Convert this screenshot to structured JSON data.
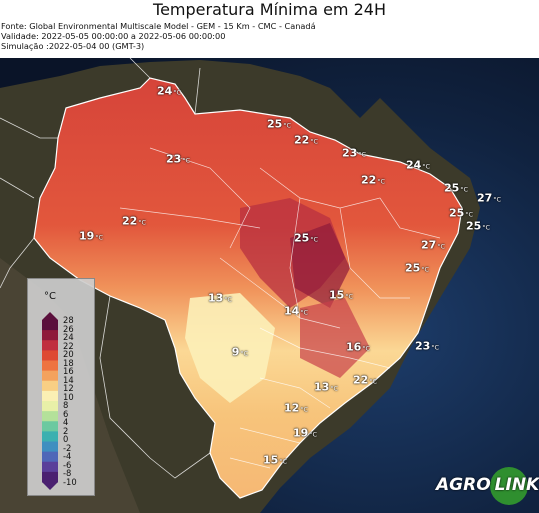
{
  "header": {
    "title": "Temperatura Mínima em 24H",
    "source": "Fonte: Global Environmental Multiscale Model - GEM - 15 Km - CMC - Canadá",
    "validity": "Validade: 2022-05-05 00:00:00 a 2022-05-06 00:00:00",
    "simulation": "Simulação :2022-05-04 00 (GMT-3)"
  },
  "map": {
    "labels": [
      {
        "id": "24a",
        "value": "24",
        "unit": "°C"
      },
      {
        "id": "25a",
        "value": "25",
        "unit": "°C"
      },
      {
        "id": "22a",
        "value": "22",
        "unit": "°C"
      },
      {
        "id": "23a",
        "value": "23",
        "unit": "°C"
      },
      {
        "id": "23b",
        "value": "23",
        "unit": "°C"
      },
      {
        "id": "24b",
        "value": "24",
        "unit": "°C"
      },
      {
        "id": "22b",
        "value": "22",
        "unit": "°C"
      },
      {
        "id": "25b",
        "value": "25",
        "unit": "°C"
      },
      {
        "id": "27a",
        "value": "27",
        "unit": "°C"
      },
      {
        "id": "22c",
        "value": "22",
        "unit": "°C"
      },
      {
        "id": "25c",
        "value": "25",
        "unit": "°C"
      },
      {
        "id": "19a",
        "value": "19",
        "unit": "°C"
      },
      {
        "id": "25d",
        "value": "25",
        "unit": "°C"
      },
      {
        "id": "25e",
        "value": "25",
        "unit": "°C"
      },
      {
        "id": "27b",
        "value": "27",
        "unit": "°C"
      },
      {
        "id": "25f",
        "value": "25",
        "unit": "°C"
      },
      {
        "id": "13a",
        "value": "13",
        "unit": "°C"
      },
      {
        "id": "15a",
        "value": "15",
        "unit": "°C"
      },
      {
        "id": "14a",
        "value": "14",
        "unit": "°C"
      },
      {
        "id": "16a",
        "value": "16",
        "unit": "°C"
      },
      {
        "id": "9a",
        "value": "9",
        "unit": "°C"
      },
      {
        "id": "23c",
        "value": "23",
        "unit": "°C"
      },
      {
        "id": "22d",
        "value": "22",
        "unit": "°C"
      },
      {
        "id": "13b",
        "value": "13",
        "unit": "°C"
      },
      {
        "id": "12a",
        "value": "12",
        "unit": "°C"
      },
      {
        "id": "19b",
        "value": "19",
        "unit": "°C"
      },
      {
        "id": "15b",
        "value": "15",
        "unit": "°C"
      }
    ]
  },
  "legend": {
    "title": "°C",
    "ticks": [
      "28",
      "26",
      "24",
      "22",
      "20",
      "18",
      "16",
      "14",
      "12",
      "10",
      "8",
      "6",
      "4",
      "2",
      "0",
      "-2",
      "-4",
      "-6",
      "-8",
      "-10"
    ],
    "colors": [
      "#5a0f3c",
      "#8e1a3a",
      "#c02d3e",
      "#de4a33",
      "#ee7340",
      "#f3a25e",
      "#f8cf84",
      "#fbf0b4",
      "#e8f0a8",
      "#b4e19a",
      "#6cc9a0",
      "#3cb0b0",
      "#3f8fc0",
      "#4f67b8",
      "#5a3f9a",
      "#4a2070"
    ]
  },
  "logo": {
    "text_left": "AGRO",
    "text_right": "LINK"
  }
}
